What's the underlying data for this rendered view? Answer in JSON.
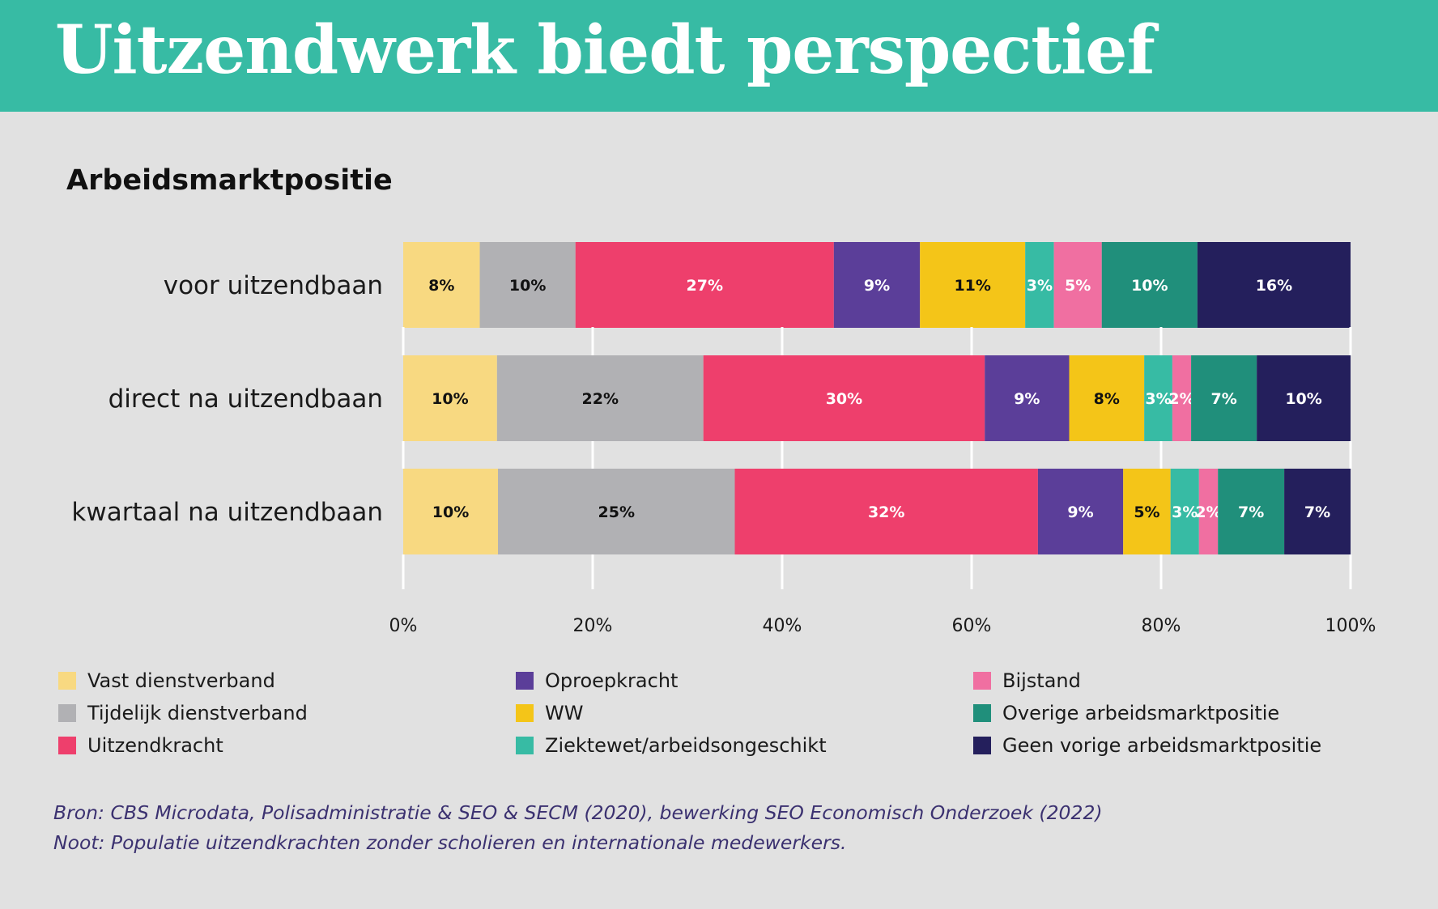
{
  "header": {
    "title": "Uitzendwerk biedt perspectief",
    "color": "#37bba4"
  },
  "chart_data": {
    "type": "bar",
    "orientation": "horizontal",
    "stacked": true,
    "title": "Arbeidsmarktpositie",
    "xlabel": "",
    "ylabel": "",
    "xlim": [
      0,
      100
    ],
    "x_ticks": [
      "0%",
      "20%",
      "40%",
      "60%",
      "80%",
      "100%"
    ],
    "grid": "vertical",
    "legend_position": "bottom",
    "categories": [
      "voor uitzendbaan",
      "direct na uitzendbaan",
      "kwartaal na uitzendbaan"
    ],
    "series": [
      {
        "name": "Vast dienstverband",
        "color": "#f8d981",
        "label_color": "#111111",
        "values": [
          8,
          10,
          10
        ]
      },
      {
        "name": "Tijdelijk dienstverband",
        "color": "#b1b1b4",
        "label_color": "#111111",
        "values": [
          10,
          22,
          25
        ]
      },
      {
        "name": "Uitzendkracht",
        "color": "#ee3f6c",
        "label_color": "#ffffff",
        "values": [
          27,
          30,
          32
        ]
      },
      {
        "name": "Oproepkracht",
        "color": "#5b3e99",
        "label_color": "#ffffff",
        "values": [
          9,
          9,
          9
        ]
      },
      {
        "name": "WW",
        "color": "#f4c518",
        "label_color": "#111111",
        "values": [
          11,
          8,
          5
        ]
      },
      {
        "name": "Ziektewet/arbeidsongeschikt",
        "color": "#37bba4",
        "label_color": "#ffffff",
        "values": [
          3,
          3,
          3
        ]
      },
      {
        "name": "Bijstand",
        "color": "#f06fa1",
        "label_color": "#ffffff",
        "values": [
          5,
          2,
          2
        ]
      },
      {
        "name": "Overige arbeidsmarktpositie",
        "color": "#208f7b",
        "label_color": "#ffffff",
        "values": [
          10,
          7,
          7
        ]
      },
      {
        "name": "Geen vorige arbeidsmarktpositie",
        "color": "#241f5c",
        "label_color": "#ffffff",
        "values": [
          16,
          10,
          7
        ]
      }
    ]
  },
  "footnotes": {
    "source": "Bron: CBS Microdata, Polisadministratie & SEO & SECM (2020), bewerking SEO Economisch Onderzoek (2022)",
    "note": "Noot: Populatie uitzendkrachten zonder scholieren en internationale medewerkers."
  }
}
